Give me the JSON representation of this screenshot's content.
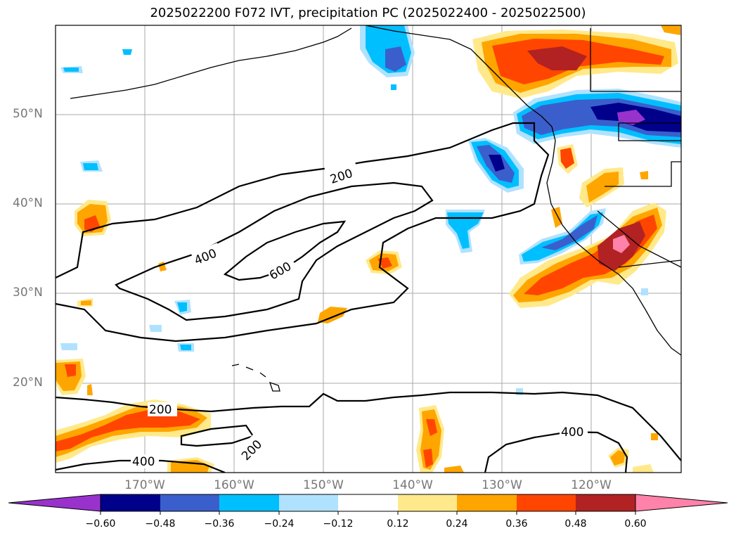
{
  "title": "2025022200 F072 IVT, precipitation PC (2025022400 - 2025022500)",
  "lat_labels": [
    "50°N",
    "40°N",
    "30°N",
    "20°N"
  ],
  "lon_labels": [
    "170°W",
    "160°W",
    "150°W",
    "140°W",
    "130°W",
    "120°W"
  ],
  "contour_labels": [
    "200",
    "400",
    "600",
    "200",
    "200",
    "400",
    "400"
  ],
  "colorbar": {
    "ticks": [
      "−0.60",
      "−0.48",
      "−0.36",
      "−0.24",
      "−0.12",
      "0.12",
      "0.24",
      "0.36",
      "0.48",
      "0.60"
    ],
    "colors": [
      "#9932cc",
      "#00008b",
      "#3a5fcd",
      "#00bfff",
      "#b0e2ff",
      "#ffffff",
      "#ffe98a",
      "#ffa500",
      "#ff4500",
      "#b22222",
      "#ff82ab"
    ]
  },
  "legend_colors": {
    "neg_extreme": "#9932cc",
    "neg_strong": "#00008b",
    "neg_mid": "#3a5fcd",
    "neg_low": "#00bfff",
    "neg_weak": "#b0e2ff",
    "pos_weak": "#ffe98a",
    "pos_low": "#ffa500",
    "pos_mid": "#ff4500",
    "pos_strong": "#b22222",
    "pos_extreme": "#ff82ab"
  }
}
